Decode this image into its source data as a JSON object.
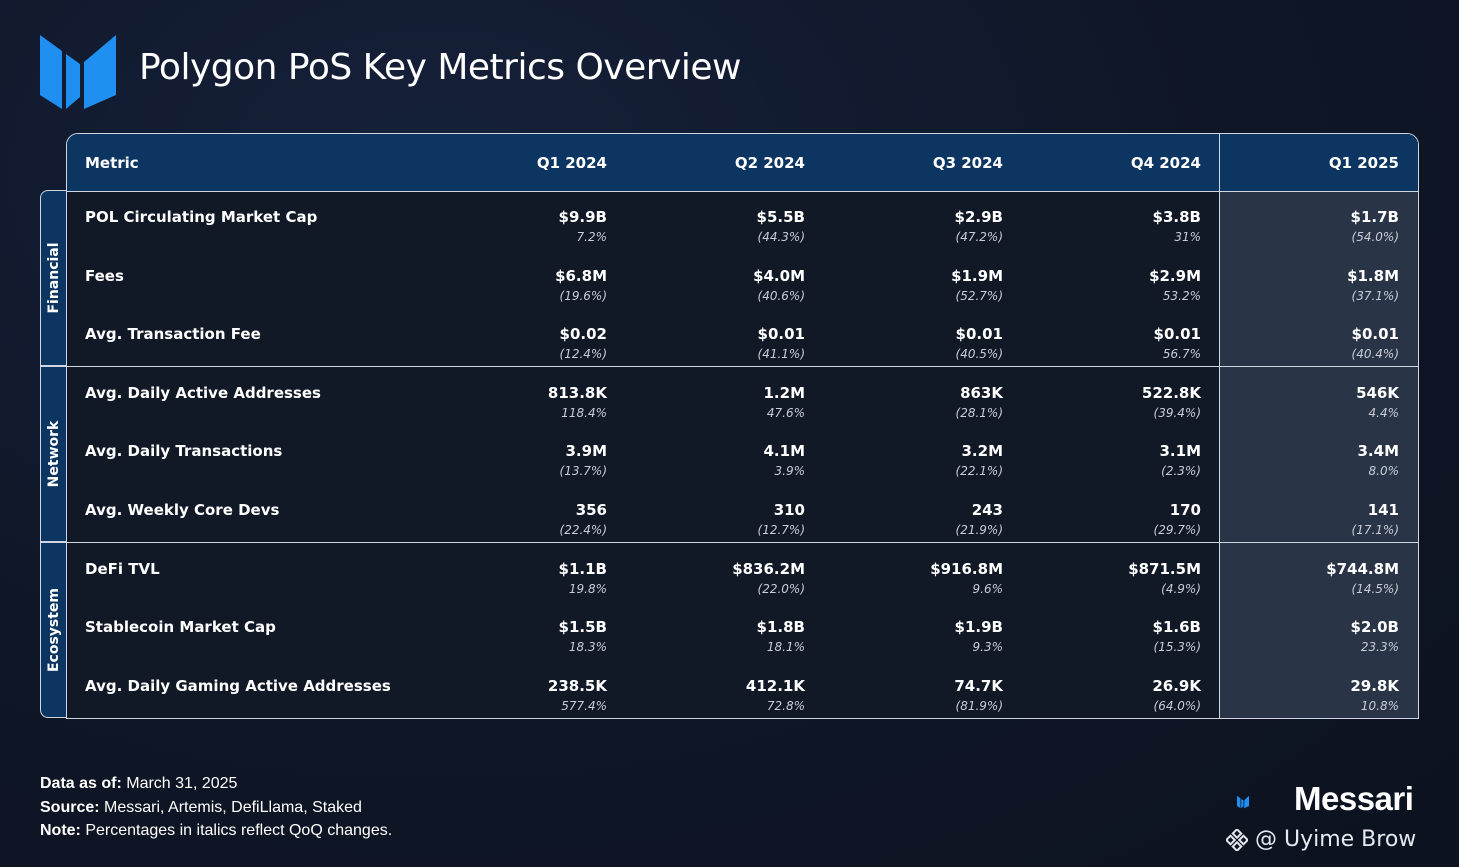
{
  "title": "Polygon PoS Key Metrics Overview",
  "colors": {
    "header_bg": "#0d3561",
    "logo_blue": "#1f8ff2",
    "highlight_col": "#2a3447"
  },
  "table": {
    "header": [
      "Metric",
      "Q1 2024",
      "Q2 2024",
      "Q3 2024",
      "Q4 2024",
      "Q1 2025"
    ],
    "sections": [
      {
        "label": "Financial",
        "rows": [
          {
            "metric": "POL Circulating Market Cap",
            "values": [
              "$9.9B",
              "$5.5B",
              "$2.9B",
              "$3.8B",
              "$1.7B"
            ],
            "changes": [
              "7.2%",
              "(44.3%)",
              "(47.2%)",
              "31%",
              "(54.0%)"
            ]
          },
          {
            "metric": "Fees",
            "values": [
              "$6.8M",
              "$4.0M",
              "$1.9M",
              "$2.9M",
              "$1.8M"
            ],
            "changes": [
              "(19.6%)",
              "(40.6%)",
              "(52.7%)",
              "53.2%",
              "(37.1%)"
            ]
          },
          {
            "metric": "Avg. Transaction Fee",
            "values": [
              "$0.02",
              "$0.01",
              "$0.01",
              "$0.01",
              "$0.01"
            ],
            "changes": [
              "(12.4%)",
              "(41.1%)",
              "(40.5%)",
              "56.7%",
              "(40.4%)"
            ]
          }
        ]
      },
      {
        "label": "Network",
        "rows": [
          {
            "metric": "Avg. Daily Active Addresses",
            "values": [
              "813.8K",
              "1.2M",
              "863K",
              "522.8K",
              "546K"
            ],
            "changes": [
              "118.4%",
              "47.6%",
              "(28.1%)",
              "(39.4%)",
              "4.4%"
            ]
          },
          {
            "metric": "Avg. Daily Transactions",
            "values": [
              "3.9M",
              "4.1M",
              "3.2M",
              "3.1M",
              "3.4M"
            ],
            "changes": [
              "(13.7%)",
              "3.9%",
              "(22.1%)",
              "(2.3%)",
              "8.0%"
            ]
          },
          {
            "metric": "Avg. Weekly Core Devs",
            "values": [
              "356",
              "310",
              "243",
              "170",
              "141"
            ],
            "changes": [
              "(22.4%)",
              "(12.7%)",
              "(21.9%)",
              "(29.7%)",
              "(17.1%)"
            ]
          }
        ]
      },
      {
        "label": "Ecosystem",
        "rows": [
          {
            "metric": "DeFi TVL",
            "values": [
              "$1.1B",
              "$836.2M",
              "$916.8M",
              "$871.5M",
              "$744.8M"
            ],
            "changes": [
              "19.8%",
              "(22.0%)",
              "9.6%",
              "(4.9%)",
              "(14.5%)"
            ]
          },
          {
            "metric": "Stablecoin Market Cap",
            "values": [
              "$1.5B",
              "$1.8B",
              "$1.9B",
              "$1.6B",
              "$2.0B"
            ],
            "changes": [
              "18.3%",
              "18.1%",
              "9.3%",
              "(15.3%)",
              "23.3%"
            ]
          },
          {
            "metric": "Avg. Daily Gaming Active Addresses",
            "values": [
              "238.5K",
              "412.1K",
              "74.7K",
              "26.9K",
              "29.8K"
            ],
            "changes": [
              "577.4%",
              "72.8%",
              "(81.9%)",
              "(64.0%)",
              "10.8%"
            ]
          }
        ]
      }
    ]
  },
  "footer": {
    "data_as_of_label": "Data as of:",
    "data_as_of_value": " March 31, 2025",
    "source_label": "Source:",
    "source_value": " Messari, Artemis, DefiLlama, Staked",
    "note_label": "Note:",
    "note_value": " Percentages in italics reflect QoQ changes."
  },
  "brand": {
    "name": "Messari",
    "icon": "messari-logo-icon"
  },
  "watermark": {
    "text": "@ Uyime Brow"
  }
}
